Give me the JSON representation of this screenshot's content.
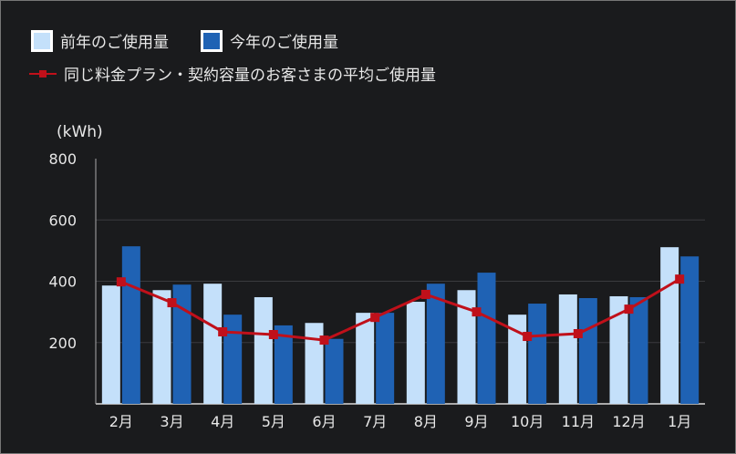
{
  "chart_data": {
    "type": "bar",
    "unit_label": "(kWh)",
    "categories": [
      "2月",
      "3月",
      "4月",
      "5月",
      "6月",
      "7月",
      "8月",
      "9月",
      "10月",
      "11月",
      "12月",
      "1月"
    ],
    "series": [
      {
        "name": "前年のご使用量",
        "type": "bar",
        "color": "#c4e0fa",
        "values": [
          386,
          371,
          392,
          348,
          264,
          297,
          333,
          371,
          291,
          357,
          351,
          511
        ]
      },
      {
        "name": "今年のご使用量",
        "type": "bar",
        "color": "#1f62b4",
        "values": [
          514,
          389,
          291,
          256,
          212,
          297,
          392,
          428,
          327,
          345,
          348,
          481
        ]
      },
      {
        "name": "同じ料金プラン・契約容量のお客さまの平均ご使用量",
        "type": "line",
        "color": "#c0101a",
        "values": [
          398,
          330,
          235,
          226,
          208,
          282,
          357,
          300,
          220,
          229,
          309,
          407
        ]
      }
    ],
    "ylim": [
      0,
      800
    ],
    "yticks": [
      200,
      400,
      600,
      800
    ],
    "grid": true,
    "legend_position": "top-left"
  }
}
